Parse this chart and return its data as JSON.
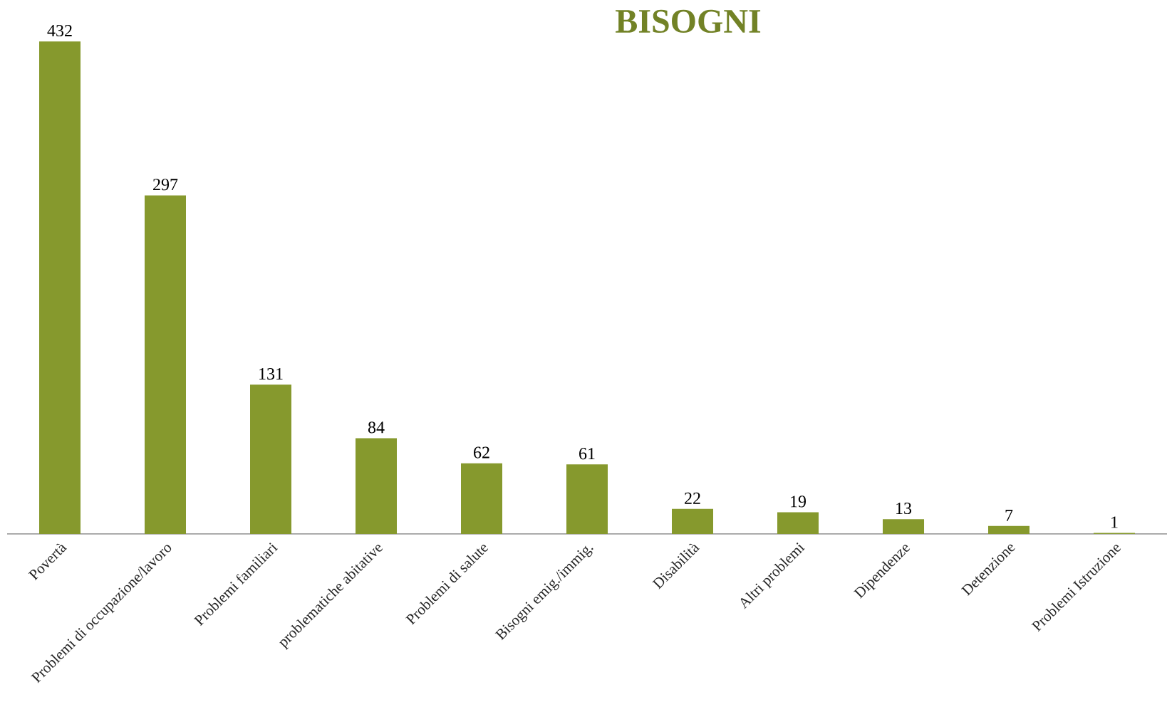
{
  "chart_data": {
    "type": "bar",
    "title": "BISOGNI",
    "categories": [
      "Povertà",
      "Problemi di occupazione/lavoro",
      "Problemi familiari",
      "problematiche abitative",
      "Problemi di salute",
      "Bisogni emig./immig.",
      "Disabilità",
      "Altri problemi",
      "Dipendenze",
      "Detenzione",
      "Problemi Istruzione"
    ],
    "values": [
      432,
      297,
      131,
      84,
      62,
      61,
      22,
      19,
      13,
      7,
      1
    ],
    "color": "#86992d",
    "data_labels": true
  }
}
